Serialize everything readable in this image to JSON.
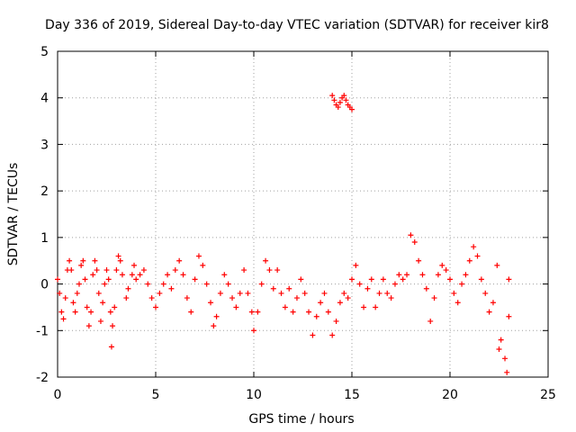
{
  "chart_data": {
    "type": "scatter",
    "title": "Day 336 of 2019, Sidereal Day-to-day VTEC variation (SDTVAR) for receiver kir8",
    "xlabel": "GPS time / hours",
    "ylabel": "SDTVAR / TECUs",
    "xlim": [
      0,
      25
    ],
    "ylim": [
      -2,
      5
    ],
    "xticks": [
      0,
      5,
      10,
      15,
      20,
      25
    ],
    "yticks": [
      -2,
      -1,
      0,
      1,
      2,
      3,
      4,
      5
    ],
    "grid": true,
    "marker": "+",
    "series": [
      {
        "name": "SDTVAR",
        "color": "#ff0000",
        "points": [
          [
            0.0,
            0.1
          ],
          [
            0.1,
            -0.2
          ],
          [
            0.2,
            -0.6
          ],
          [
            0.3,
            -0.75
          ],
          [
            0.4,
            -0.3
          ],
          [
            0.5,
            0.3
          ],
          [
            0.6,
            0.5
          ],
          [
            0.7,
            0.3
          ],
          [
            0.8,
            -0.4
          ],
          [
            0.9,
            -0.6
          ],
          [
            1.0,
            -0.2
          ],
          [
            1.1,
            0.0
          ],
          [
            1.2,
            0.4
          ],
          [
            1.3,
            0.5
          ],
          [
            1.4,
            0.1
          ],
          [
            1.5,
            -0.5
          ],
          [
            1.6,
            -0.9
          ],
          [
            1.7,
            -0.6
          ],
          [
            1.8,
            0.2
          ],
          [
            1.9,
            0.5
          ],
          [
            2.0,
            0.3
          ],
          [
            2.1,
            -0.2
          ],
          [
            2.2,
            -0.8
          ],
          [
            2.3,
            -0.4
          ],
          [
            2.4,
            0.0
          ],
          [
            2.5,
            0.3
          ],
          [
            2.6,
            0.1
          ],
          [
            2.7,
            -0.6
          ],
          [
            2.75,
            -1.35
          ],
          [
            2.8,
            -0.9
          ],
          [
            2.9,
            -0.5
          ],
          [
            3.0,
            0.3
          ],
          [
            3.1,
            0.6
          ],
          [
            3.2,
            0.5
          ],
          [
            3.3,
            0.2
          ],
          [
            3.5,
            -0.3
          ],
          [
            3.6,
            -0.1
          ],
          [
            3.8,
            0.2
          ],
          [
            3.9,
            0.4
          ],
          [
            4.0,
            0.1
          ],
          [
            4.2,
            0.2
          ],
          [
            4.4,
            0.3
          ],
          [
            4.6,
            0.0
          ],
          [
            4.8,
            -0.3
          ],
          [
            5.0,
            -0.5
          ],
          [
            5.2,
            -0.2
          ],
          [
            5.4,
            0.0
          ],
          [
            5.6,
            0.2
          ],
          [
            5.8,
            -0.1
          ],
          [
            6.0,
            0.3
          ],
          [
            6.2,
            0.5
          ],
          [
            6.4,
            0.2
          ],
          [
            6.6,
            -0.3
          ],
          [
            6.8,
            -0.6
          ],
          [
            7.0,
            0.1
          ],
          [
            7.2,
            0.6
          ],
          [
            7.4,
            0.4
          ],
          [
            7.6,
            0.0
          ],
          [
            7.8,
            -0.4
          ],
          [
            7.95,
            -0.9
          ],
          [
            8.1,
            -0.7
          ],
          [
            8.3,
            -0.2
          ],
          [
            8.5,
            0.2
          ],
          [
            8.7,
            0.0
          ],
          [
            8.9,
            -0.3
          ],
          [
            9.1,
            -0.5
          ],
          [
            9.3,
            -0.2
          ],
          [
            9.5,
            0.3
          ],
          [
            9.7,
            -0.2
          ],
          [
            9.9,
            -0.6
          ],
          [
            10.0,
            -1.0
          ],
          [
            10.2,
            -0.6
          ],
          [
            10.4,
            0.0
          ],
          [
            10.6,
            0.5
          ],
          [
            10.8,
            0.3
          ],
          [
            11.0,
            -0.1
          ],
          [
            11.2,
            0.3
          ],
          [
            11.4,
            -0.2
          ],
          [
            11.6,
            -0.5
          ],
          [
            11.8,
            -0.1
          ],
          [
            12.0,
            -0.6
          ],
          [
            12.2,
            -0.3
          ],
          [
            12.4,
            0.1
          ],
          [
            12.6,
            -0.2
          ],
          [
            12.8,
            -0.6
          ],
          [
            13.0,
            -1.1
          ],
          [
            13.2,
            -0.7
          ],
          [
            13.4,
            -0.4
          ],
          [
            13.6,
            -0.2
          ],
          [
            13.8,
            -0.6
          ],
          [
            14.0,
            -1.1
          ],
          [
            14.2,
            -0.8
          ],
          [
            14.4,
            -0.4
          ],
          [
            14.6,
            -0.2
          ],
          [
            14.8,
            -0.3
          ],
          [
            15.0,
            0.1
          ],
          [
            15.2,
            0.4
          ],
          [
            15.4,
            0.0
          ],
          [
            15.6,
            -0.5
          ],
          [
            15.8,
            -0.1
          ],
          [
            16.0,
            0.1
          ],
          [
            16.2,
            -0.5
          ],
          [
            16.4,
            -0.2
          ],
          [
            16.6,
            0.1
          ],
          [
            16.8,
            -0.2
          ],
          [
            17.0,
            -0.3
          ],
          [
            17.2,
            0.0
          ],
          [
            17.4,
            0.2
          ],
          [
            17.6,
            0.1
          ],
          [
            17.8,
            0.2
          ],
          [
            18.0,
            1.05
          ],
          [
            18.2,
            0.9
          ],
          [
            18.4,
            0.5
          ],
          [
            18.6,
            0.2
          ],
          [
            18.8,
            -0.1
          ],
          [
            19.0,
            -0.8
          ],
          [
            19.2,
            -0.3
          ],
          [
            19.4,
            0.2
          ],
          [
            19.6,
            0.4
          ],
          [
            19.8,
            0.3
          ],
          [
            20.0,
            0.1
          ],
          [
            20.2,
            -0.2
          ],
          [
            20.4,
            -0.4
          ],
          [
            20.6,
            0.0
          ],
          [
            20.8,
            0.2
          ],
          [
            21.0,
            0.5
          ],
          [
            21.2,
            0.8
          ],
          [
            21.4,
            0.6
          ],
          [
            21.6,
            0.1
          ],
          [
            21.8,
            -0.2
          ],
          [
            22.0,
            -0.6
          ],
          [
            22.2,
            -0.4
          ],
          [
            22.4,
            0.4
          ],
          [
            22.5,
            -1.4
          ],
          [
            22.6,
            -1.2
          ],
          [
            22.8,
            -1.6
          ],
          [
            22.9,
            -1.9
          ],
          [
            23.0,
            0.1
          ],
          [
            23.0,
            -0.7
          ],
          [
            14.0,
            4.05
          ],
          [
            14.1,
            3.95
          ],
          [
            14.2,
            3.85
          ],
          [
            14.3,
            3.8
          ],
          [
            14.4,
            3.9
          ],
          [
            14.5,
            4.0
          ],
          [
            14.6,
            4.05
          ],
          [
            14.7,
            3.95
          ],
          [
            14.8,
            3.85
          ],
          [
            14.9,
            3.8
          ],
          [
            15.0,
            3.75
          ]
        ]
      }
    ]
  }
}
